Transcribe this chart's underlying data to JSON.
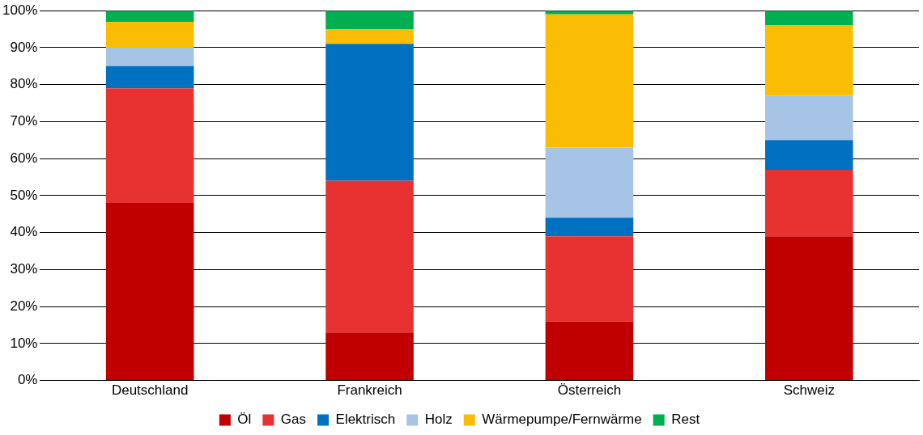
{
  "chart_data": {
    "type": "bar",
    "stacked": true,
    "categories": [
      "Deutschland",
      "Frankreich",
      "Österreich",
      "Schweiz"
    ],
    "series": [
      {
        "name": "Öl",
        "color": "#c00000",
        "values": [
          48,
          13,
          16,
          39
        ]
      },
      {
        "name": "Gas",
        "color": "#e83232",
        "values": [
          31,
          41,
          23,
          18
        ]
      },
      {
        "name": "Elektrisch",
        "color": "#0070c0",
        "values": [
          6,
          37,
          5,
          8
        ]
      },
      {
        "name": "Holz",
        "color": "#a6c4e6",
        "values": [
          5,
          0,
          19,
          12
        ]
      },
      {
        "name": "Wärmepumpe/Fernwärme",
        "color": "#fbbc04",
        "values": [
          7,
          4,
          36,
          19
        ]
      },
      {
        "name": "Rest",
        "color": "#00b050",
        "values": [
          3,
          5,
          1,
          4
        ]
      }
    ],
    "ylim": [
      0,
      100
    ],
    "yticks": [
      {
        "value": 0,
        "label": "0%"
      },
      {
        "value": 10,
        "label": "10%"
      },
      {
        "value": 20,
        "label": "20%"
      },
      {
        "value": 30,
        "label": "30%"
      },
      {
        "value": 40,
        "label": "40%"
      },
      {
        "value": 50,
        "label": "50%"
      },
      {
        "value": 60,
        "label": "60%"
      },
      {
        "value": 70,
        "label": "70%"
      },
      {
        "value": 80,
        "label": "80%"
      },
      {
        "value": 90,
        "label": "90%"
      },
      {
        "value": 100,
        "label": "100%"
      }
    ],
    "grid": "y",
    "legend": "bottom"
  }
}
